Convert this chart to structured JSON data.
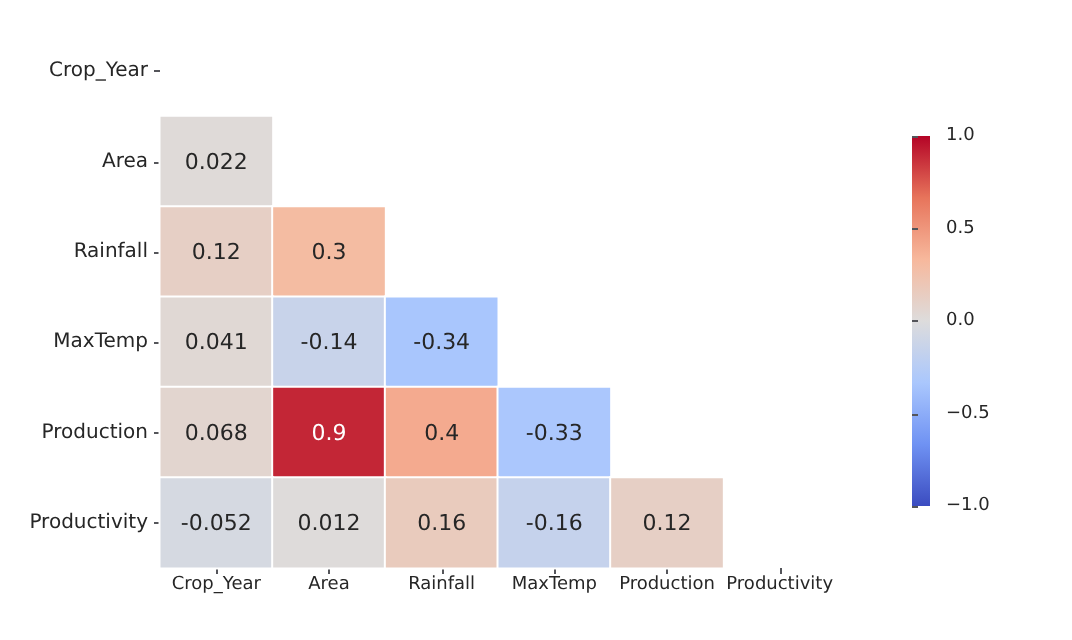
{
  "chart_data": {
    "type": "heatmap",
    "categories": [
      "Crop_Year",
      "Area",
      "Rainfall",
      "MaxTemp",
      "Production",
      "Productivity"
    ],
    "y_categories": [
      "Crop_Year",
      "Area",
      "Rainfall",
      "MaxTemp",
      "Production",
      "Productivity"
    ],
    "cells": [
      [
        null,
        null,
        null,
        null,
        null,
        null
      ],
      [
        0.022,
        null,
        null,
        null,
        null,
        null
      ],
      [
        0.12,
        0.3,
        null,
        null,
        null,
        null
      ],
      [
        0.041,
        -0.14,
        -0.34,
        null,
        null,
        null
      ],
      [
        0.068,
        0.9,
        0.4,
        -0.33,
        null,
        null
      ],
      [
        -0.052,
        0.012,
        0.16,
        -0.16,
        0.12,
        null
      ]
    ],
    "data_labels": true,
    "clim": [
      -1,
      1
    ],
    "cticks": [
      {
        "value": -1,
        "label": "−1.0"
      },
      {
        "value": -0.5,
        "label": "−0.5"
      },
      {
        "value": 0,
        "label": "0.0"
      },
      {
        "value": 0.5,
        "label": "0.5"
      },
      {
        "value": 1,
        "label": "1.0"
      }
    ]
  }
}
